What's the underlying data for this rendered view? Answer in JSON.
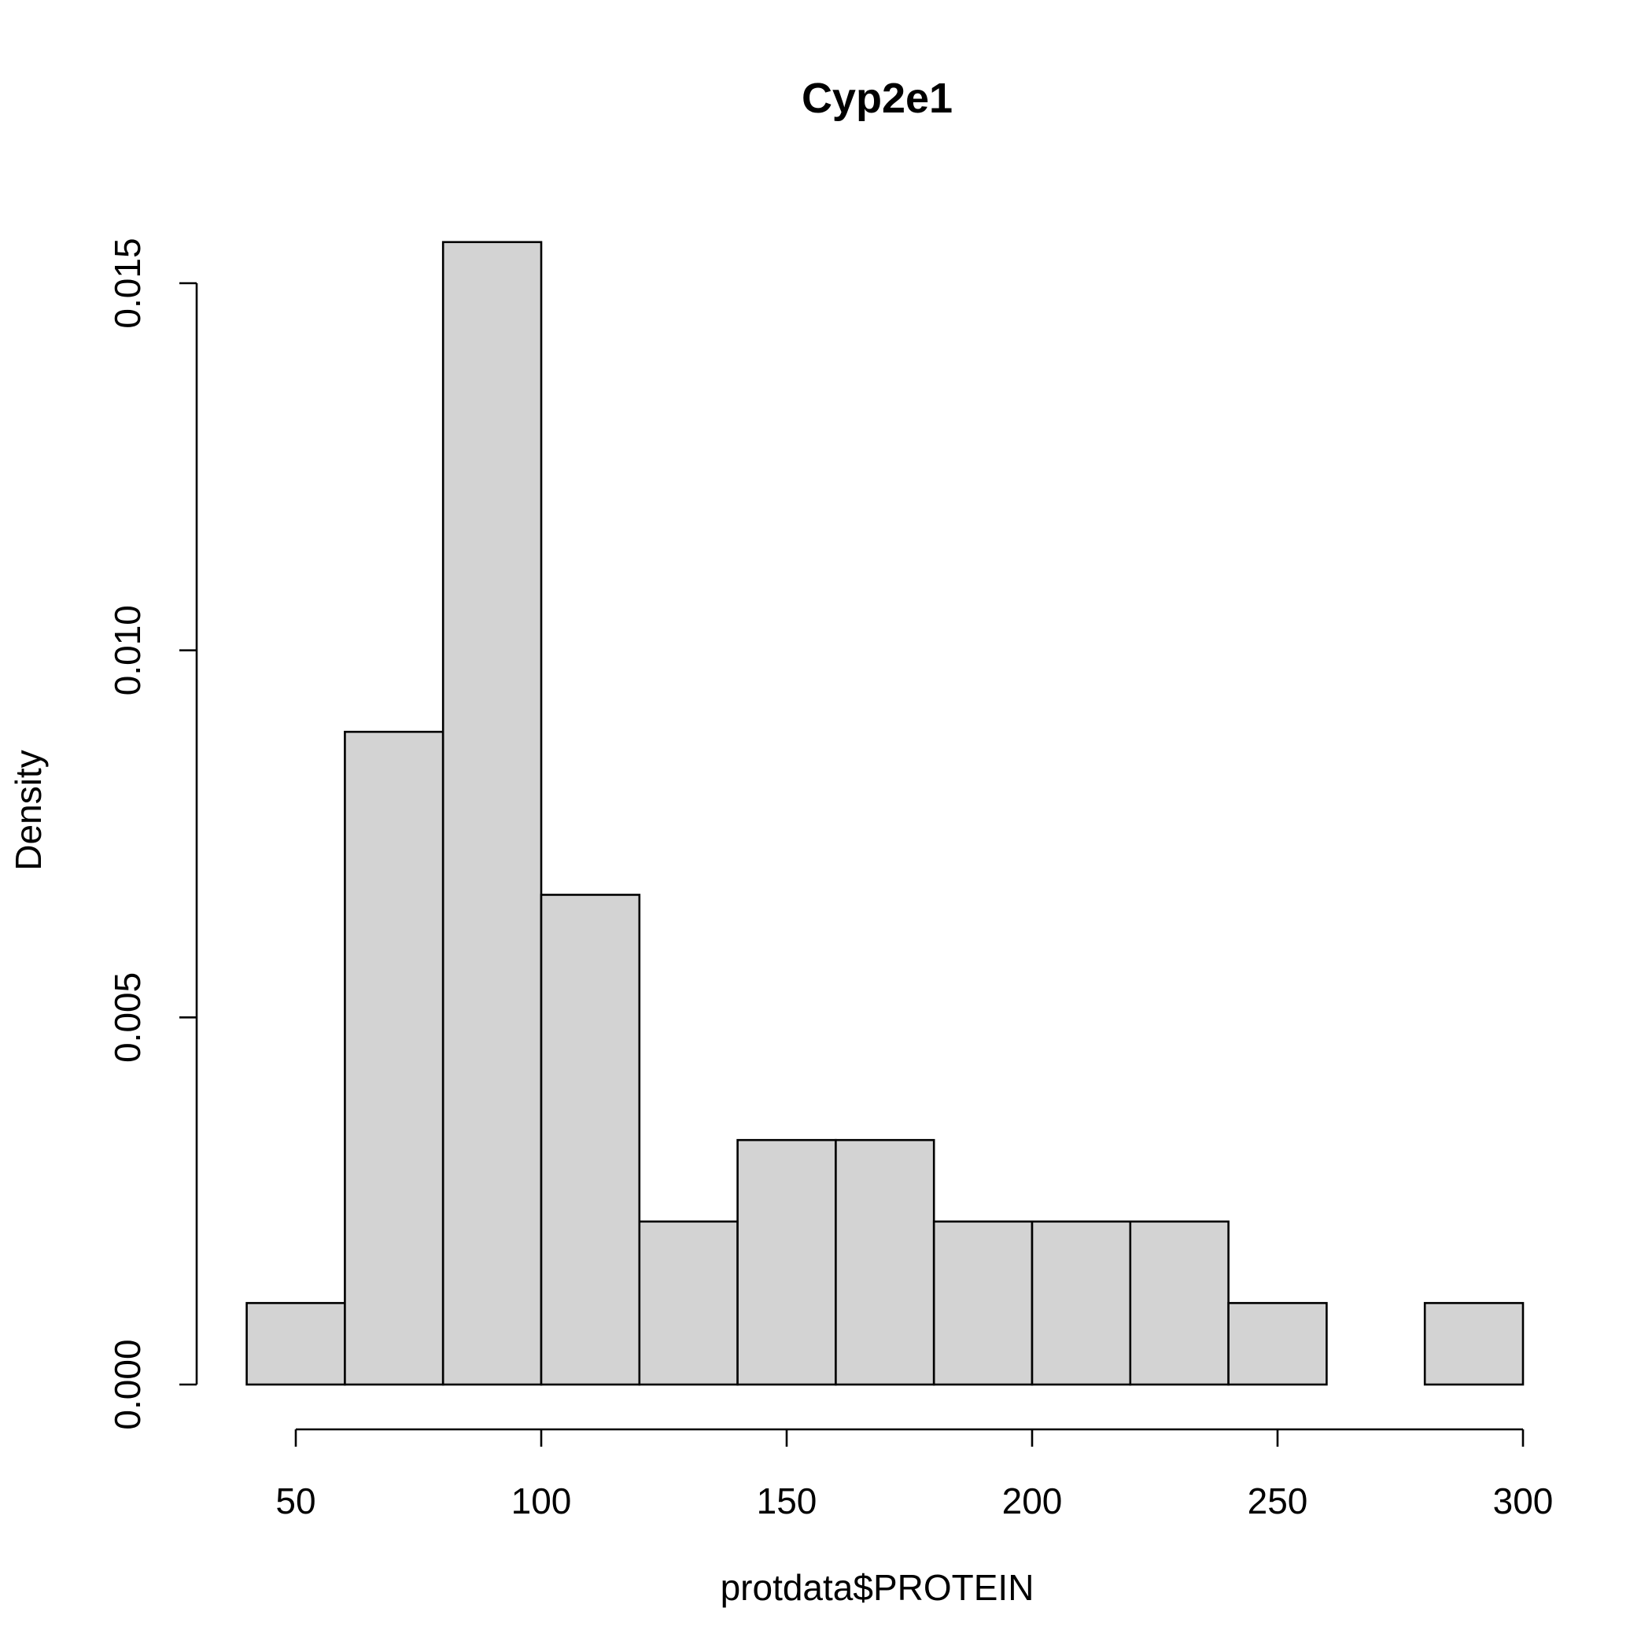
{
  "chart_data": {
    "type": "bar",
    "subtype": "histogram",
    "title": "Cyp2e1",
    "xlabel": "protdata$PROTEIN",
    "ylabel": "Density",
    "bins": [
      {
        "from": 40,
        "to": 60,
        "density": 0.00111
      },
      {
        "from": 60,
        "to": 80,
        "density": 0.00889
      },
      {
        "from": 80,
        "to": 100,
        "density": 0.01556
      },
      {
        "from": 100,
        "to": 120,
        "density": 0.00667
      },
      {
        "from": 120,
        "to": 140,
        "density": 0.00222
      },
      {
        "from": 140,
        "to": 160,
        "density": 0.00333
      },
      {
        "from": 160,
        "to": 180,
        "density": 0.00333
      },
      {
        "from": 180,
        "to": 200,
        "density": 0.00222
      },
      {
        "from": 200,
        "to": 220,
        "density": 0.00222
      },
      {
        "from": 220,
        "to": 240,
        "density": 0.00222
      },
      {
        "from": 240,
        "to": 260,
        "density": 0.00111
      },
      {
        "from": 260,
        "to": 280,
        "density": 0
      },
      {
        "from": 280,
        "to": 300,
        "density": 0.00111
      }
    ],
    "x_ticks": [
      50,
      100,
      150,
      200,
      250,
      300
    ],
    "x_tick_labels": [
      "50",
      "100",
      "150",
      "200",
      "250",
      "300"
    ],
    "y_ticks": [
      0,
      0.005,
      0.01,
      0.015
    ],
    "y_tick_labels": [
      "0.000",
      "0.005",
      "0.010",
      "0.015"
    ],
    "xlim": [
      40,
      300
    ],
    "ylim": [
      0,
      0.015
    ],
    "bar_fill": "#d3d3d3",
    "bar_stroke": "#000000",
    "grid": false,
    "legend": "none"
  }
}
